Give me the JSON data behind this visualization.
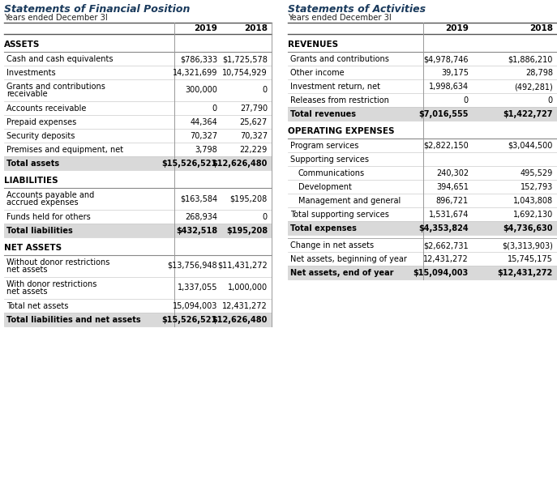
{
  "bg_color": "#ffffff",
  "title_color": "#1a3a5c",
  "text_color": "#000000",
  "row_bg_shaded": "#d9d9d9",
  "left_title": "Statements of Financial Position",
  "left_subtitle": "Years ended December 3I",
  "right_title": "Statements of Activities",
  "right_subtitle": "Years ended December 3I",
  "left_sections": [
    {
      "section_name": "ASSETS",
      "rows": [
        {
          "label": "Cash and cash equivalents",
          "v2019": "$786,333",
          "v2018": "$1,725,578",
          "shaded": false,
          "bold_label": false,
          "bold_vals": false,
          "multiline": false
        },
        {
          "label": "Investments",
          "v2019": "14,321,699",
          "v2018": "10,754,929",
          "shaded": false,
          "bold_label": false,
          "bold_vals": false,
          "multiline": false
        },
        {
          "label": "Grants and contributions\nreceivable",
          "v2019": "300,000",
          "v2018": "0",
          "shaded": false,
          "bold_label": false,
          "bold_vals": false,
          "multiline": true
        },
        {
          "label": "Accounts receivable",
          "v2019": "0",
          "v2018": "27,790",
          "shaded": false,
          "bold_label": false,
          "bold_vals": false,
          "multiline": false
        },
        {
          "label": "Prepaid expenses",
          "v2019": "44,364",
          "v2018": "25,627",
          "shaded": false,
          "bold_label": false,
          "bold_vals": false,
          "multiline": false
        },
        {
          "label": "Security deposits",
          "v2019": "70,327",
          "v2018": "70,327",
          "shaded": false,
          "bold_label": false,
          "bold_vals": false,
          "multiline": false
        },
        {
          "label": "Premises and equipment, net",
          "v2019": "3,798",
          "v2018": "22,229",
          "shaded": false,
          "bold_label": false,
          "bold_vals": false,
          "multiline": false
        },
        {
          "label": "Total assets",
          "v2019": "$15,526,521",
          "v2018": "$12,626,480",
          "shaded": true,
          "bold_label": true,
          "bold_vals": true,
          "multiline": false
        }
      ]
    },
    {
      "section_name": "LIABILITIES",
      "rows": [
        {
          "label": "Accounts payable and\naccrued expenses",
          "v2019": "$163,584",
          "v2018": "$195,208",
          "shaded": false,
          "bold_label": false,
          "bold_vals": false,
          "multiline": true
        },
        {
          "label": "Funds held for others",
          "v2019": "268,934",
          "v2018": "0",
          "shaded": false,
          "bold_label": false,
          "bold_vals": false,
          "multiline": false
        },
        {
          "label": "Total liabilities",
          "v2019": "$432,518",
          "v2018": "$195,208",
          "shaded": true,
          "bold_label": true,
          "bold_vals": true,
          "multiline": false
        }
      ]
    },
    {
      "section_name": "NET ASSETS",
      "rows": [
        {
          "label": "Without donor restrictions\nnet assets",
          "v2019": "$13,756,948",
          "v2018": "$11,431,272",
          "shaded": false,
          "bold_label": false,
          "bold_vals": false,
          "multiline": true
        },
        {
          "label": "With donor restrictions\nnet assets",
          "v2019": "1,337,055",
          "v2018": "1,000,000",
          "shaded": false,
          "bold_label": false,
          "bold_vals": false,
          "multiline": true
        },
        {
          "label": "Total net assets",
          "v2019": "15,094,003",
          "v2018": "12,431,272",
          "shaded": false,
          "bold_label": false,
          "bold_vals": false,
          "multiline": false
        },
        {
          "label": "Total liabilities and net assets",
          "v2019": "$15,526,521",
          "v2018": "$12,626,480",
          "shaded": true,
          "bold_label": true,
          "bold_vals": true,
          "multiline": false
        }
      ]
    }
  ],
  "right_sections": [
    {
      "section_name": "REVENUES",
      "rows": [
        {
          "label": "Grants and contributions",
          "v2019": "$4,978,746",
          "v2018": "$1,886,210",
          "shaded": false,
          "bold_label": false,
          "bold_vals": false,
          "multiline": false,
          "extra_indent": false
        },
        {
          "label": "Other income",
          "v2019": "39,175",
          "v2018": "28,798",
          "shaded": false,
          "bold_label": false,
          "bold_vals": false,
          "multiline": false,
          "extra_indent": false
        },
        {
          "label": "Investment return, net",
          "v2019": "1,998,634",
          "v2018": "(492,281)",
          "shaded": false,
          "bold_label": false,
          "bold_vals": false,
          "multiline": false,
          "extra_indent": false
        },
        {
          "label": "Releases from restriction",
          "v2019": "0",
          "v2018": "0",
          "shaded": false,
          "bold_label": false,
          "bold_vals": false,
          "multiline": false,
          "extra_indent": false
        },
        {
          "label": "Total revenues",
          "v2019": "$7,016,555",
          "v2018": "$1,422,727",
          "shaded": true,
          "bold_label": true,
          "bold_vals": true,
          "multiline": false,
          "extra_indent": false
        }
      ]
    },
    {
      "section_name": "OPERATING EXPENSES",
      "rows": [
        {
          "label": "Program services",
          "v2019": "$2,822,150",
          "v2018": "$3,044,500",
          "shaded": false,
          "bold_label": false,
          "bold_vals": false,
          "multiline": false,
          "extra_indent": false
        },
        {
          "label": "Supporting services",
          "v2019": "",
          "v2018": "",
          "shaded": false,
          "bold_label": false,
          "bold_vals": false,
          "multiline": false,
          "extra_indent": false,
          "no_vals": true
        },
        {
          "label": "Communications",
          "v2019": "240,302",
          "v2018": "495,529",
          "shaded": false,
          "bold_label": false,
          "bold_vals": false,
          "multiline": false,
          "extra_indent": true
        },
        {
          "label": "Development",
          "v2019": "394,651",
          "v2018": "152,793",
          "shaded": false,
          "bold_label": false,
          "bold_vals": false,
          "multiline": false,
          "extra_indent": true
        },
        {
          "label": "Management and general",
          "v2019": "896,721",
          "v2018": "1,043,808",
          "shaded": false,
          "bold_label": false,
          "bold_vals": false,
          "multiline": false,
          "extra_indent": true
        },
        {
          "label": "Total supporting services",
          "v2019": "1,531,674",
          "v2018": "1,692,130",
          "shaded": false,
          "bold_label": false,
          "bold_vals": false,
          "multiline": false,
          "extra_indent": false
        },
        {
          "label": "Total expenses",
          "v2019": "$4,353,824",
          "v2018": "$4,736,630",
          "shaded": true,
          "bold_label": true,
          "bold_vals": true,
          "multiline": false,
          "extra_indent": false
        }
      ]
    },
    {
      "section_name": "",
      "rows": [
        {
          "label": "Change in net assets",
          "v2019": "$2,662,731",
          "v2018": "$(3,313,903)",
          "shaded": false,
          "bold_label": false,
          "bold_vals": false,
          "multiline": false,
          "extra_indent": false
        },
        {
          "label": "Net assets, beginning of year",
          "v2019": "12,431,272",
          "v2018": "15,745,175",
          "shaded": false,
          "bold_label": false,
          "bold_vals": false,
          "multiline": false,
          "extra_indent": false
        },
        {
          "label": "Net assets, end of year",
          "v2019": "$15,094,003",
          "v2018": "$12,431,272",
          "shaded": true,
          "bold_label": true,
          "bold_vals": true,
          "multiline": false,
          "extra_indent": false
        }
      ]
    }
  ]
}
